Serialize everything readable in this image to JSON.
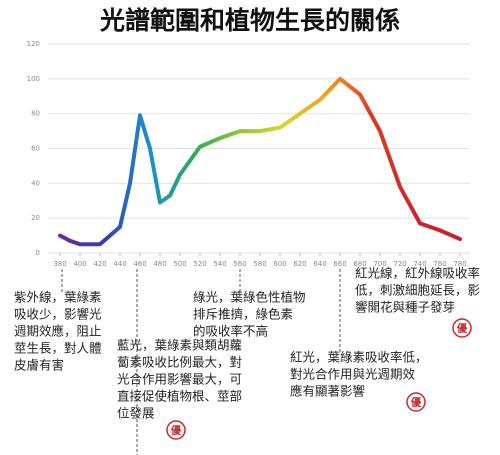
{
  "chart_data": {
    "type": "line",
    "title": "光譜範圍和植物生長的關係",
    "x": [
      380,
      390,
      400,
      420,
      440,
      450,
      460,
      470,
      480,
      490,
      500,
      520,
      540,
      560,
      580,
      600,
      620,
      640,
      660,
      680,
      700,
      720,
      740,
      760,
      780
    ],
    "series": [
      {
        "values": [
          10,
          7,
          5,
          5,
          15,
          40,
          79,
          60,
          29,
          33,
          45,
          61,
          66,
          70,
          70,
          72,
          80,
          88,
          100,
          91,
          70,
          38,
          17,
          13,
          8
        ],
        "colors": [
          "#6a2c91",
          "#3340b0",
          "#1b8fd0",
          "#2fa85a",
          "#8cc43a",
          "#d6d82a",
          "#f0a020",
          "#e03a24",
          "#d1242a",
          "#c4202a"
        ]
      }
    ],
    "xlim": [
      380,
      780
    ],
    "xticks": [
      380,
      400,
      420,
      440,
      460,
      480,
      500,
      520,
      540,
      560,
      580,
      600,
      620,
      640,
      660,
      680,
      700,
      720,
      740,
      760,
      780
    ],
    "ylim": [
      0,
      120
    ],
    "yticks": [
      0,
      20,
      40,
      60,
      80,
      100,
      120
    ],
    "grid": true,
    "annotations": [
      {
        "lines": [
          "紫外線，葉綠素",
          "吸收少，影響光",
          "週期效應，阻止",
          "莖生長，對人體",
          "皮膚有害"
        ]
      },
      {
        "lines": [
          "藍光，葉綠素與類胡蘿",
          "蔔素吸收比例最大，對",
          "光合作用影響最大，可",
          "直接促使植物根、莖部",
          "位發展"
        ],
        "badge": "優"
      },
      {
        "lines": [
          "綠光，葉綠色性植物",
          "排斥推擠，綠色素",
          "的吸收率不高"
        ]
      },
      {
        "lines": [
          "紅光，葉綠素吸收率低，",
          "對光合作用與光週期效",
          "應有顯著影響"
        ],
        "badge": "優"
      },
      {
        "lines": [
          "紅光線，紅外線吸收率",
          "低，刺激細胞延長，影",
          "響開花與種子發芽"
        ],
        "badge": "優"
      }
    ]
  }
}
